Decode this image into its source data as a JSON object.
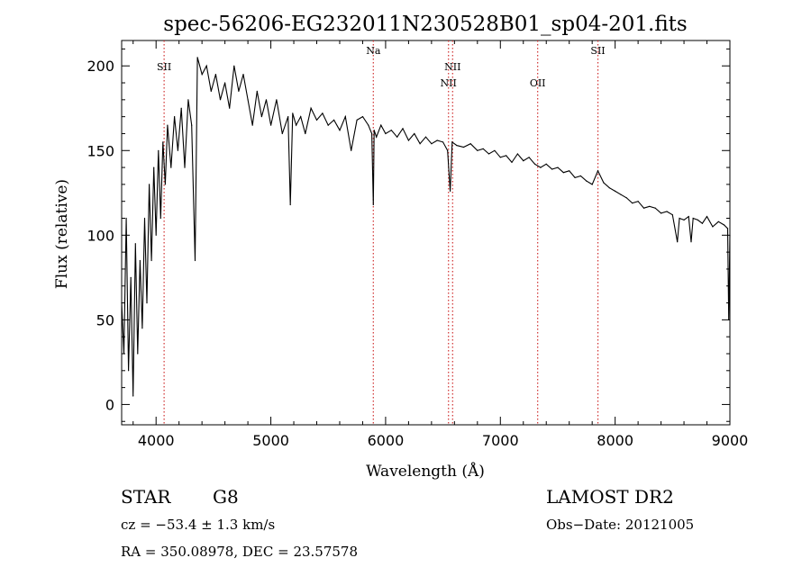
{
  "chart_data": {
    "type": "line",
    "title": "spec-56206-EG232011N230528B01_sp04-201.fits",
    "xlabel": "Wavelength (Å)",
    "ylabel": "Flux (relative)",
    "xlim": [
      3700,
      9000
    ],
    "ylim": [
      -12,
      215
    ],
    "xticks": [
      4000,
      5000,
      6000,
      7000,
      8000,
      9000
    ],
    "yticks": [
      0,
      50,
      100,
      150,
      200
    ],
    "grid": false,
    "series": [
      {
        "x": [
          3700,
          3720,
          3740,
          3760,
          3780,
          3800,
          3820,
          3840,
          3860,
          3880,
          3900,
          3920,
          3940,
          3960,
          3980,
          4000,
          4020,
          4040,
          4060,
          4080,
          4100,
          4130,
          4160,
          4190,
          4220,
          4250,
          4280,
          4310,
          4340,
          4360,
          4400,
          4440,
          4480,
          4520,
          4560,
          4600,
          4640,
          4680,
          4720,
          4760,
          4800,
          4840,
          4880,
          4920,
          4960,
          5000,
          5050,
          5100,
          5150,
          5170,
          5190,
          5220,
          5260,
          5300,
          5350,
          5400,
          5450,
          5500,
          5550,
          5600,
          5650,
          5700,
          5750,
          5800,
          5850,
          5880,
          5893,
          5900,
          5920,
          5960,
          6000,
          6050,
          6100,
          6150,
          6200,
          6250,
          6300,
          6350,
          6400,
          6450,
          6500,
          6540,
          6563,
          6580,
          6620,
          6680,
          6740,
          6800,
          6850,
          6900,
          6950,
          7000,
          7050,
          7100,
          7150,
          7200,
          7250,
          7300,
          7350,
          7400,
          7450,
          7500,
          7550,
          7600,
          7650,
          7700,
          7750,
          7800,
          7850,
          7900,
          7950,
          8000,
          8050,
          8100,
          8150,
          8200,
          8250,
          8300,
          8350,
          8400,
          8450,
          8500,
          8542,
          8560,
          8600,
          8640,
          8662,
          8680,
          8720,
          8760,
          8800,
          8850,
          8900,
          8950,
          8980,
          8990,
          9000
        ],
        "y": [
          60,
          30,
          110,
          20,
          75,
          5,
          95,
          30,
          85,
          45,
          110,
          60,
          130,
          85,
          140,
          100,
          150,
          110,
          155,
          130,
          165,
          140,
          170,
          150,
          175,
          140,
          180,
          165,
          85,
          205,
          195,
          200,
          185,
          195,
          180,
          190,
          175,
          200,
          185,
          195,
          180,
          165,
          185,
          170,
          180,
          165,
          180,
          160,
          170,
          118,
          172,
          165,
          170,
          160,
          175,
          168,
          172,
          165,
          168,
          162,
          170,
          150,
          168,
          170,
          165,
          160,
          118,
          162,
          158,
          165,
          160,
          162,
          158,
          163,
          156,
          160,
          154,
          158,
          154,
          156,
          155,
          150,
          126,
          155,
          153,
          152,
          154,
          150,
          151,
          148,
          150,
          146,
          147,
          143,
          148,
          144,
          146,
          142,
          140,
          142,
          139,
          140,
          137,
          138,
          134,
          135,
          132,
          130,
          138,
          131,
          128,
          126,
          124,
          122,
          119,
          120,
          116,
          117,
          116,
          113,
          114,
          112,
          96,
          110,
          109,
          111,
          96,
          110,
          109,
          107,
          111,
          105,
          108,
          106,
          104,
          50,
          100
        ]
      }
    ],
    "emission_lines": [
      {
        "label": "SII",
        "x": 4070,
        "row": 1
      },
      {
        "label": "Na",
        "x": 5893,
        "row": 0
      },
      {
        "label": "NII",
        "x": 6548,
        "row": 2
      },
      {
        "label": "NII",
        "x": 6584,
        "row": 1
      },
      {
        "label": "OII",
        "x": 7325,
        "row": 2
      },
      {
        "label": "SII",
        "x": 7850,
        "row": 0
      }
    ]
  },
  "info": {
    "class_label": "STAR",
    "subclass": "G8",
    "survey": "LAMOST DR2",
    "redshift": "cz = −53.4 ± 1.3 km/s",
    "obs_date": "Obs−Date: 20121005",
    "coords": "RA = 350.08978, DEC =  23.57578"
  }
}
